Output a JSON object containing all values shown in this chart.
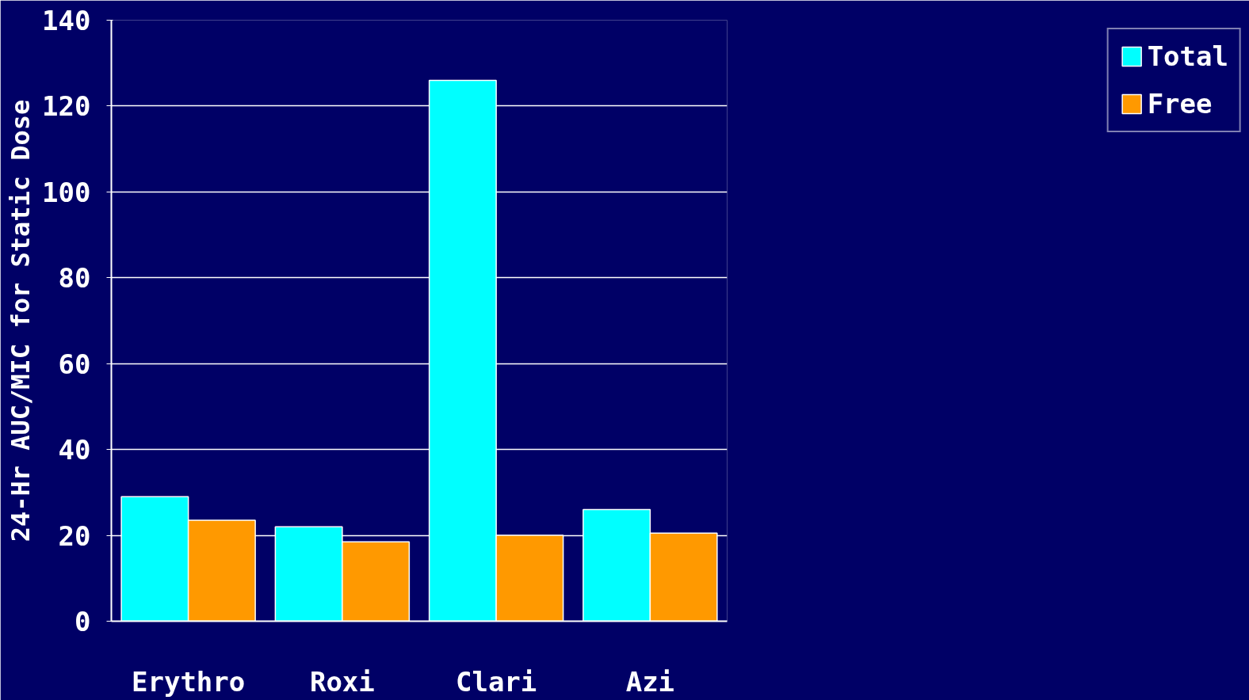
{
  "chart_data": {
    "type": "bar",
    "ylabel": "24-Hr AUC/MIC for Static Dose",
    "categories": [
      "Erythro",
      "Roxi",
      "Clari",
      "Azi"
    ],
    "series": [
      {
        "name": "Total",
        "color": "#00ffff",
        "values": [
          29,
          22,
          126,
          26
        ]
      },
      {
        "name": "Free",
        "color": "#ff9900",
        "values": [
          23.5,
          18.5,
          20,
          20.5
        ]
      }
    ],
    "ylim": [
      0,
      140
    ],
    "yticks": [
      0,
      20,
      40,
      60,
      80,
      100,
      120,
      140
    ],
    "grid": "y",
    "legend": "right"
  }
}
